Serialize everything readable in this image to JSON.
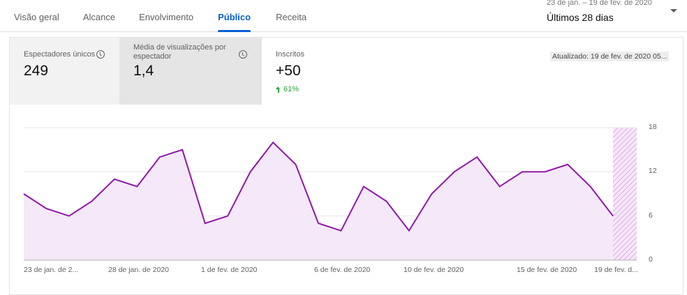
{
  "tabs": [
    {
      "label": "Visão geral",
      "active": false
    },
    {
      "label": "Alcance",
      "active": false
    },
    {
      "label": "Envolvimento",
      "active": false
    },
    {
      "label": "Público",
      "active": true
    },
    {
      "label": "Receita",
      "active": false
    }
  ],
  "date_select": {
    "range": "23 de jan. – 19 de fev. de 2020",
    "label": "Últimos 28 dias"
  },
  "metrics": [
    {
      "label": "Espectadores únicos",
      "value": "249",
      "icon": "clock-icon"
    },
    {
      "label": "Média de visualizações por espectador",
      "value": "1,4",
      "icon": "clock-icon"
    },
    {
      "label": "Inscritos",
      "value": "+50",
      "delta": "61%",
      "delta_direction": "up"
    }
  ],
  "updated": "Atualizado: 19 de fev. de 2020 05...",
  "colors": {
    "accent": "#065fd4",
    "line": "#8e17a8",
    "fill": "#f5e8f9",
    "positive": "#2ba640"
  },
  "chart_data": {
    "type": "area",
    "title": "Inscritos",
    "series": [
      {
        "name": "Inscritos",
        "values": [
          9,
          7,
          6,
          8,
          11,
          10,
          14,
          15,
          5,
          6,
          12,
          16,
          13,
          5,
          4,
          10,
          8,
          4,
          9,
          12,
          14,
          10,
          12,
          12,
          13,
          10,
          6
        ]
      }
    ],
    "x": [
      "23 jan",
      "24 jan",
      "25 jan",
      "26 jan",
      "27 jan",
      "28 jan",
      "29 jan",
      "30 jan",
      "31 jan",
      "1 fev",
      "2 fev",
      "3 fev",
      "4 fev",
      "5 fev",
      "6 fev",
      "7 fev",
      "8 fev",
      "9 fev",
      "10 fev",
      "11 fev",
      "12 fev",
      "13 fev",
      "14 fev",
      "15 fev",
      "16 fev",
      "17 fev",
      "18 fev"
    ],
    "x_tick_labels": [
      "23 de jan. de 2...",
      "28 de jan. de 2020",
      "1 de fev. de 2020",
      "6 de fev. de 2020",
      "10 de fev. de 2020",
      "15 de fev. de 2020",
      "19 de fev. d..."
    ],
    "y_tick_labels": [
      "0",
      "6",
      "12",
      "18"
    ],
    "ylim": [
      0,
      18
    ],
    "grid": true,
    "y_axis_position": "right",
    "incomplete_period": "19 de fev.",
    "legend": "none"
  }
}
